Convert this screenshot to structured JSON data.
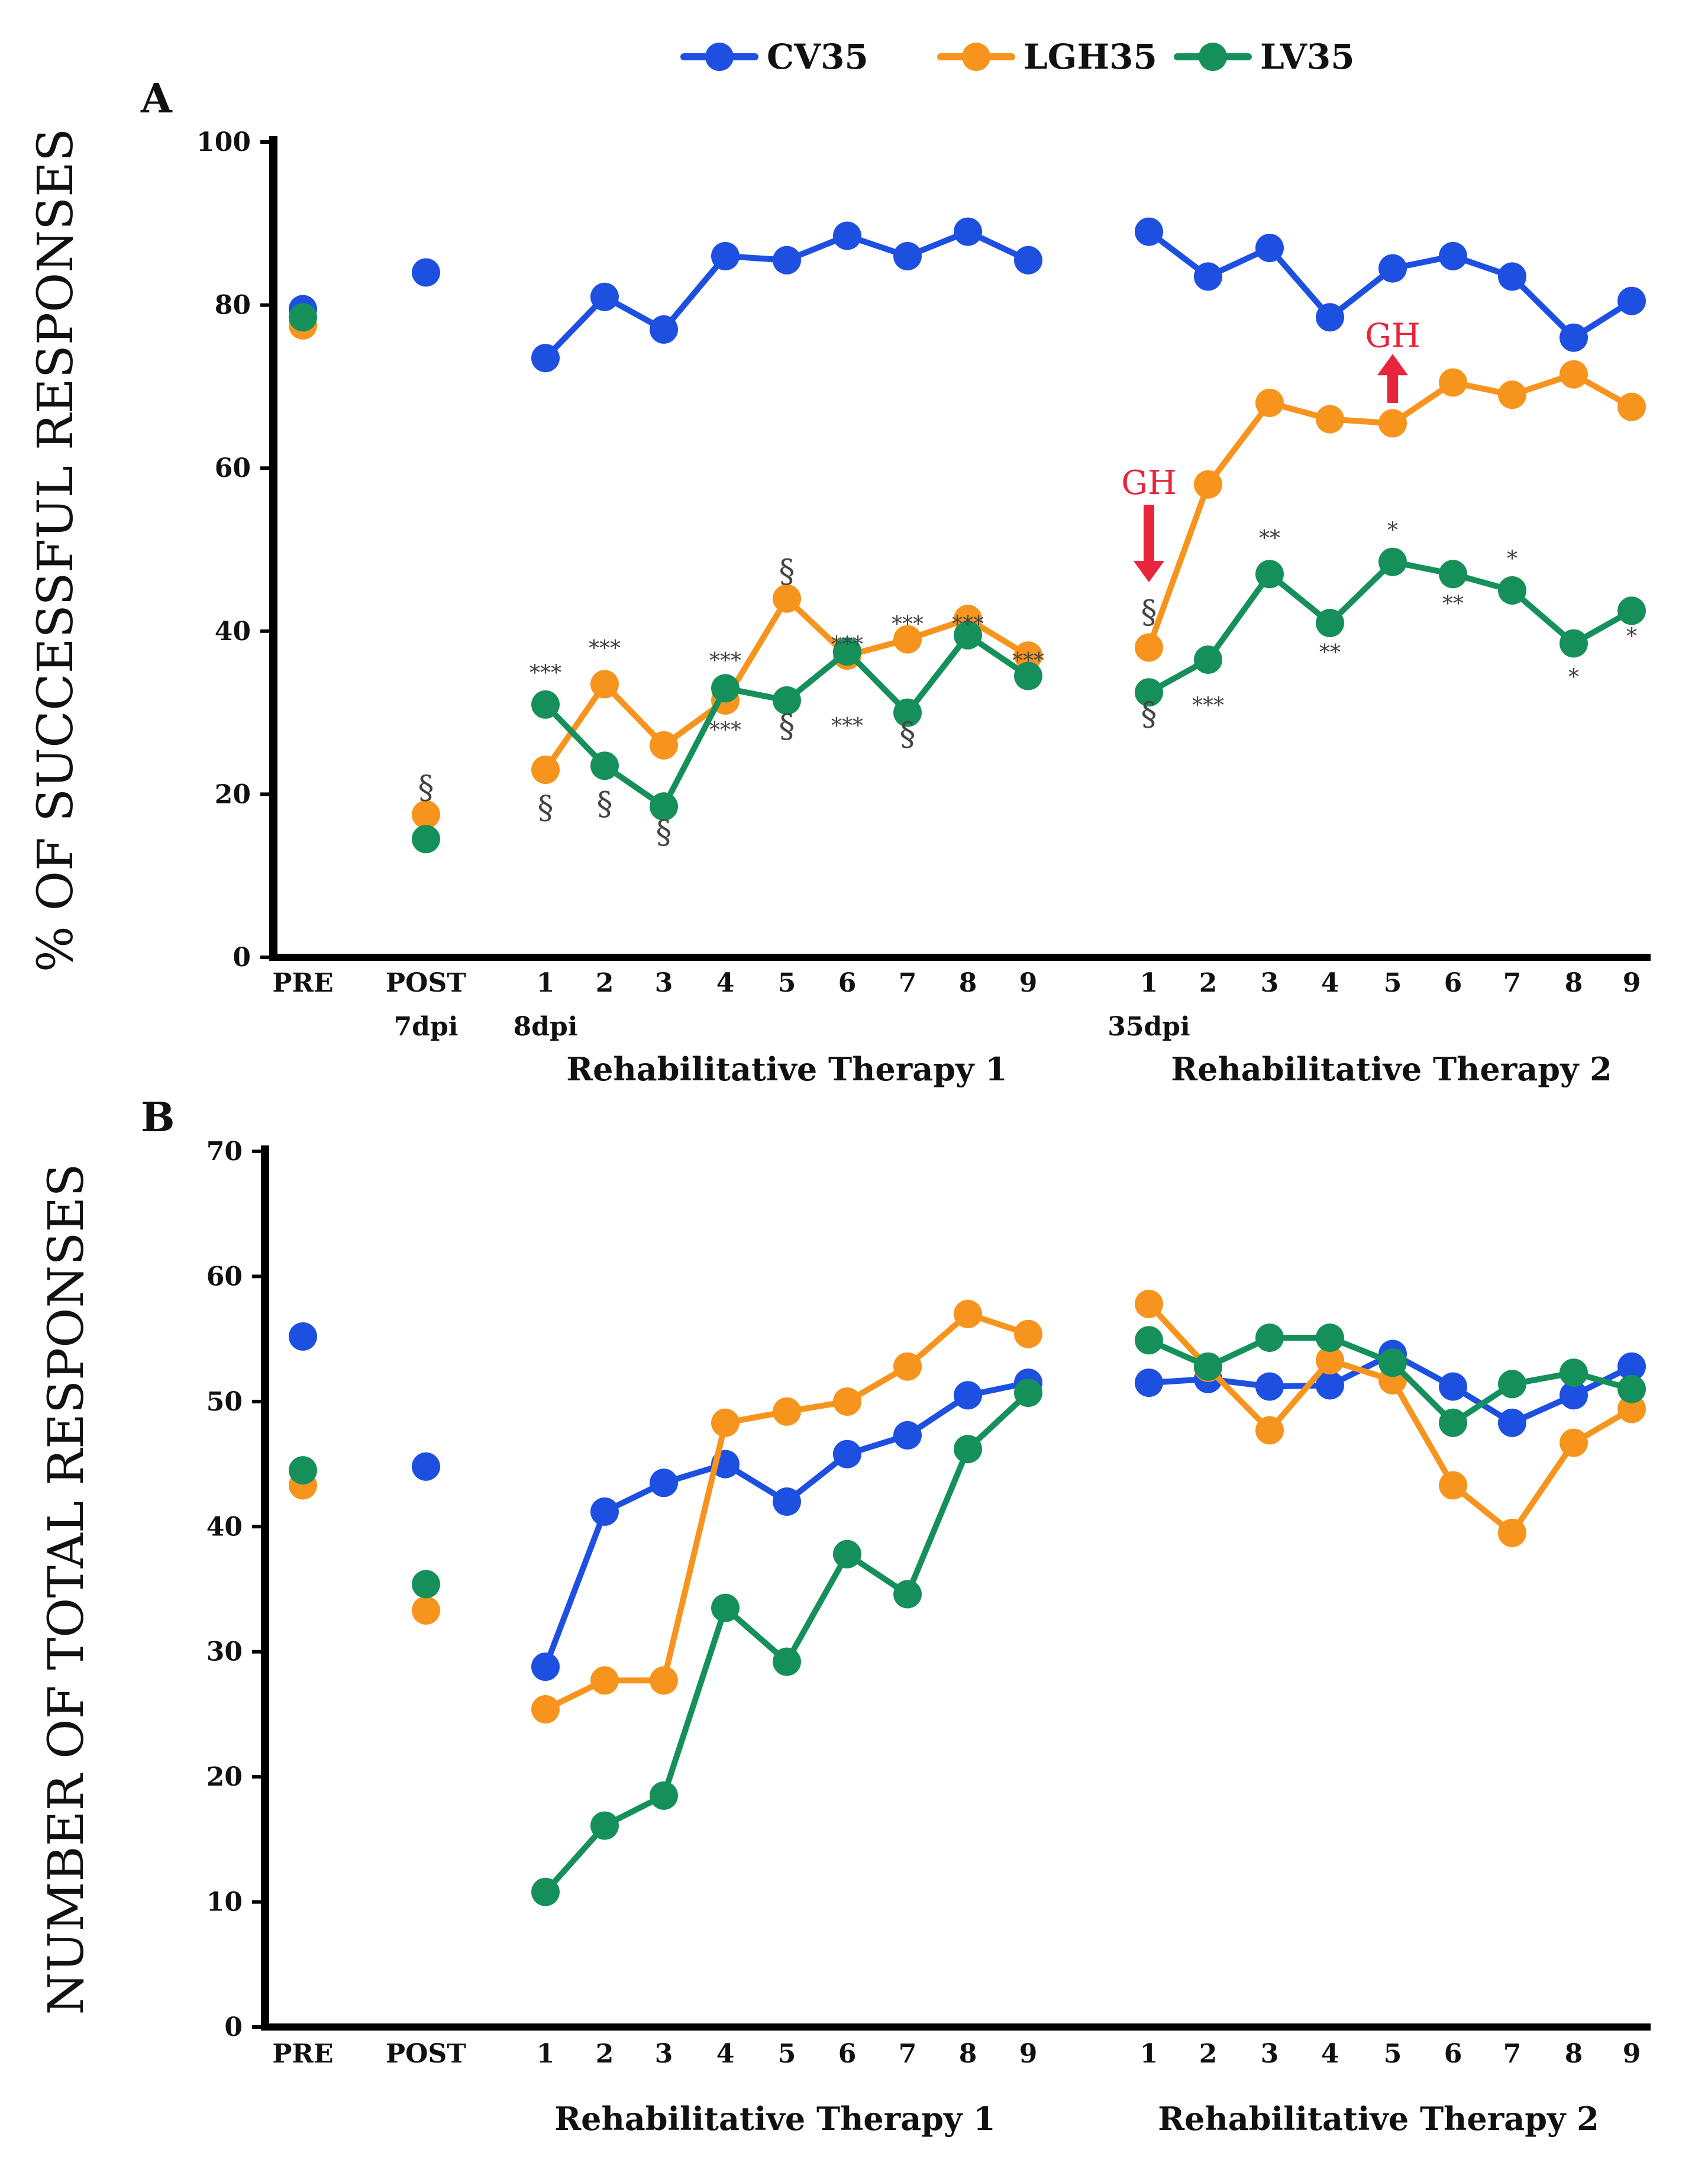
{
  "legend": [
    {
      "name": "CV35",
      "color": "#1d4fe0"
    },
    {
      "name": "LGH35",
      "color": "#f7941d"
    },
    {
      "name": "LV35",
      "color": "#16905a"
    }
  ],
  "chart_data": [
    {
      "panel": "A",
      "type": "line",
      "ylabel": "% OF SUCCESSFUL RESPONSES",
      "ylim": [
        0,
        100
      ],
      "yticks": [
        "0",
        "20",
        "40",
        "60",
        "80",
        "100"
      ],
      "x_labels": [
        "PRE",
        "POST",
        "1",
        "2",
        "3",
        "4",
        "5",
        "6",
        "7",
        "8",
        "9",
        "1",
        "2",
        "3",
        "4",
        "5",
        "6",
        "7",
        "8",
        "9"
      ],
      "sublabels": [
        {
          "slot": 1,
          "text": "7dpi"
        },
        {
          "slot": 2,
          "text": "8dpi"
        },
        {
          "slot": 11,
          "text": "35dpi"
        }
      ],
      "groups": [
        "Rehabilitative Therapy 1",
        "Rehabilitative Therapy 2"
      ],
      "series": [
        {
          "name": "CV35",
          "color": "#1d4fe0",
          "values": [
            79.5,
            84,
            73.5,
            81,
            77,
            86,
            85.5,
            88.5,
            86,
            89,
            85.5,
            89,
            83.5,
            87,
            78.5,
            84.5,
            86,
            83.5,
            76,
            80.5
          ]
        },
        {
          "name": "LGH35",
          "color": "#f7941d",
          "values": [
            77.5,
            17.5,
            23,
            33.5,
            26,
            31.5,
            44,
            37,
            39,
            41.5,
            37,
            38,
            58,
            68,
            66,
            65.5,
            70.5,
            69,
            71.5,
            67.5
          ]
        },
        {
          "name": "LV35",
          "color": "#16905a",
          "values": [
            78.5,
            14.5,
            31,
            23.5,
            18.5,
            33,
            31.5,
            37.5,
            30,
            39.5,
            34.5,
            32.5,
            36.5,
            47,
            41,
            48.5,
            47,
            45,
            38.5,
            42.5
          ]
        }
      ],
      "annotations": [
        {
          "text": "***",
          "slot": 2,
          "value": 34
        },
        {
          "text": "***",
          "slot": 3,
          "value": 37
        },
        {
          "text": "***",
          "slot": 5,
          "value": 35.5
        },
        {
          "text": "***",
          "slot": 5,
          "value": 27
        },
        {
          "text": "***",
          "slot": 7,
          "value": 37.5
        },
        {
          "text": "***",
          "slot": 7,
          "value": 27.5
        },
        {
          "text": "***",
          "slot": 8,
          "value": 40
        },
        {
          "text": "***",
          "slot": 9,
          "value": 40
        },
        {
          "text": "***",
          "slot": 10,
          "value": 35.5
        },
        {
          "text": "***",
          "slot": 12,
          "value": 30
        },
        {
          "text": "**",
          "slot": 13,
          "value": 50.5
        },
        {
          "text": "**",
          "slot": 14,
          "value": 36.5
        },
        {
          "text": "*",
          "slot": 15,
          "value": 51.5
        },
        {
          "text": "**",
          "slot": 16,
          "value": 42.5
        },
        {
          "text": "*",
          "slot": 17,
          "value": 48
        },
        {
          "text": "*",
          "slot": 18,
          "value": 33.5
        },
        {
          "text": "*",
          "slot": 19,
          "value": 38.5
        }
      ],
      "section_marks": [
        {
          "text": "§",
          "slot": 1,
          "value": 19.5
        },
        {
          "text": "§",
          "slot": 2,
          "value": 17
        },
        {
          "text": "§",
          "slot": 3,
          "value": 17.5
        },
        {
          "text": "§",
          "slot": 4,
          "value": 14
        },
        {
          "text": "§",
          "slot": 6,
          "value": 46
        },
        {
          "text": "§",
          "slot": 6,
          "value": 27
        },
        {
          "text": "§",
          "slot": 8,
          "value": 26
        },
        {
          "text": "§",
          "slot": 11,
          "value": 41
        },
        {
          "text": "§",
          "slot": 11,
          "value": 28.5
        }
      ],
      "events": [
        {
          "label": "GH",
          "slot": 11,
          "direction": "down",
          "value_from": 55.5,
          "value_to": 46
        },
        {
          "label": "GH",
          "slot": 15,
          "direction": "up",
          "value_from": 68,
          "value_to": 74
        }
      ]
    },
    {
      "panel": "B",
      "type": "line",
      "ylabel": "NUMBER OF TOTAL RESPONSES",
      "ylim": [
        0,
        70
      ],
      "yticks": [
        "0",
        "10",
        "20",
        "30",
        "40",
        "50",
        "60",
        "70"
      ],
      "x_labels": [
        "PRE",
        "POST",
        "1",
        "2",
        "3",
        "4",
        "5",
        "6",
        "7",
        "8",
        "9",
        "1",
        "2",
        "3",
        "4",
        "5",
        "6",
        "7",
        "8",
        "9"
      ],
      "groups": [
        "Rehabilitative Therapy 1",
        "Rehabilitative Therapy 2"
      ],
      "series": [
        {
          "name": "CV35",
          "color": "#1d4fe0",
          "values": [
            55.2,
            44.8,
            28.8,
            41.2,
            43.5,
            45,
            42,
            45.8,
            47.3,
            50.5,
            51.5,
            51.5,
            51.8,
            51.2,
            51.3,
            53.8,
            51.2,
            48.3,
            50.5,
            52.8
          ]
        },
        {
          "name": "LGH35",
          "color": "#f7941d",
          "values": [
            43.3,
            33.3,
            25.4,
            27.7,
            27.7,
            48.3,
            49.2,
            50,
            52.8,
            57,
            55.4,
            57.8,
            52.7,
            47.7,
            53.3,
            51.7,
            43.3,
            39.5,
            46.7,
            49.4
          ]
        },
        {
          "name": "LV35",
          "color": "#16905a",
          "values": [
            44.5,
            35.4,
            10.8,
            16.1,
            18.5,
            33.5,
            29.2,
            37.8,
            34.6,
            46.2,
            50.7,
            54.9,
            52.8,
            55.1,
            55.1,
            53.1,
            48.3,
            51.4,
            52.3,
            51
          ]
        }
      ]
    }
  ]
}
